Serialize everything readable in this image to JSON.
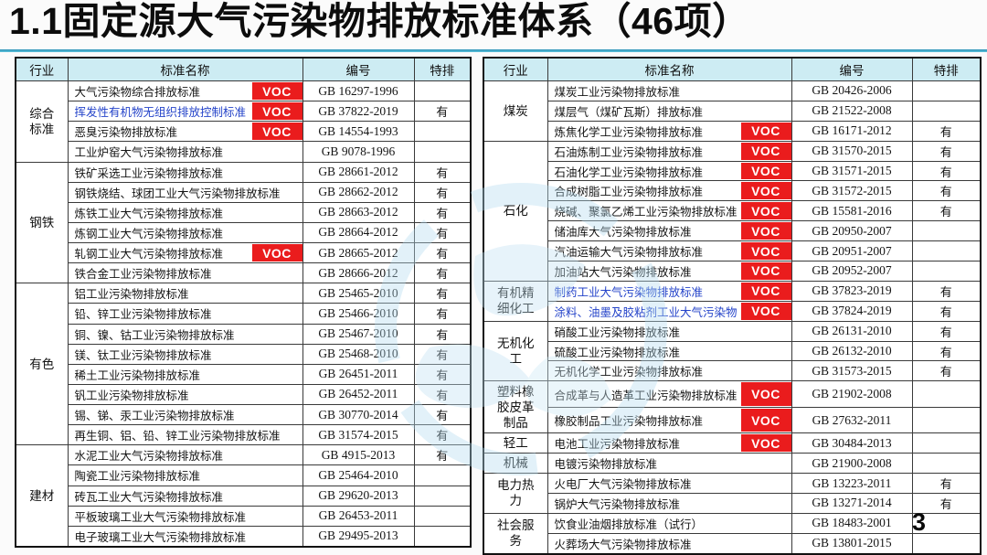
{
  "title": "1.1固定源大气污染物排放标准体系（46项）",
  "page_number": "3",
  "voc_label": "VOC",
  "colors": {
    "header_bg": "#cdecf3",
    "voc_red": "#ea1c1d",
    "link_blue": "#2443c9",
    "title_rule": "#3fa9c6"
  },
  "tables": [
    {
      "headers": [
        "行业",
        "标准名称",
        "编号",
        "特排"
      ],
      "groups": [
        {
          "industry": "综合标准",
          "rows": [
            {
              "name": "大气污染物综合排放标准",
              "voc": true,
              "blue": false,
              "code": "GB 16297-1996",
              "special": ""
            },
            {
              "name": "挥发性有机物无组织排放控制标准",
              "voc": true,
              "blue": true,
              "code": "GB 37822-2019",
              "special": "有"
            },
            {
              "name": "恶臭污染物排放标准",
              "voc": true,
              "blue": false,
              "code": "GB 14554-1993",
              "special": ""
            },
            {
              "name": "工业炉窑大气污染物排放标准",
              "voc": false,
              "blue": false,
              "code": "GB 9078-1996",
              "special": ""
            }
          ]
        },
        {
          "industry": "钢铁",
          "rows": [
            {
              "name": "铁矿采选工业污染物排放标准",
              "voc": false,
              "blue": false,
              "code": "GB 28661-2012",
              "special": "有"
            },
            {
              "name": "钢铁烧结、球团工业大气污染物排放标准",
              "voc": false,
              "blue": false,
              "code": "GB 28662-2012",
              "special": "有"
            },
            {
              "name": "炼铁工业大气污染物排放标准",
              "voc": false,
              "blue": false,
              "code": "GB 28663-2012",
              "special": "有"
            },
            {
              "name": "炼钢工业大气污染物排放标准",
              "voc": false,
              "blue": false,
              "code": "GB 28664-2012",
              "special": "有"
            },
            {
              "name": "轧钢工业大气污染物排放标准",
              "voc": true,
              "blue": false,
              "code": "GB 28665-2012",
              "special": "有"
            },
            {
              "name": "铁合金工业污染物排放标准",
              "voc": false,
              "blue": false,
              "code": "GB 28666-2012",
              "special": "有"
            }
          ]
        },
        {
          "industry": "有色",
          "rows": [
            {
              "name": "铝工业污染物排放标准",
              "voc": false,
              "blue": false,
              "code": "GB 25465-2010",
              "special": "有"
            },
            {
              "name": "铅、锌工业污染物排放标准",
              "voc": false,
              "blue": false,
              "code": "GB 25466-2010",
              "special": "有"
            },
            {
              "name": "铜、镍、钴工业污染物排放标准",
              "voc": false,
              "blue": false,
              "code": "GB 25467-2010",
              "special": "有"
            },
            {
              "name": "镁、钛工业污染物排放标准",
              "voc": false,
              "blue": false,
              "code": "GB 25468-2010",
              "special": "有"
            },
            {
              "name": "稀土工业污染物排放标准",
              "voc": false,
              "blue": false,
              "code": "GB 26451-2011",
              "special": "有"
            },
            {
              "name": "钒工业污染物排放标准",
              "voc": false,
              "blue": false,
              "code": "GB 26452-2011",
              "special": "有"
            },
            {
              "name": "锡、锑、汞工业污染物排放标准",
              "voc": false,
              "blue": false,
              "code": "GB 30770-2014",
              "special": "有"
            },
            {
              "name": "再生铜、铝、铅、锌工业污染物排放标准",
              "voc": false,
              "blue": false,
              "code": "GB 31574-2015",
              "special": "有"
            }
          ]
        },
        {
          "industry": "建材",
          "rows": [
            {
              "name": "水泥工业大气污染物排放标准",
              "voc": false,
              "blue": false,
              "code": "GB 4915-2013",
              "special": "有"
            },
            {
              "name": "陶瓷工业污染物排放标准",
              "voc": false,
              "blue": false,
              "code": "GB 25464-2010",
              "special": ""
            },
            {
              "name": "砖瓦工业大气污染物排放标准",
              "voc": false,
              "blue": false,
              "code": "GB 29620-2013",
              "special": ""
            },
            {
              "name": "平板玻璃工业大气污染物排放标准",
              "voc": false,
              "blue": false,
              "code": "GB 26453-2011",
              "special": ""
            },
            {
              "name": "电子玻璃工业大气污染物排放标准",
              "voc": false,
              "blue": false,
              "code": "GB 29495-2013",
              "special": ""
            }
          ]
        }
      ]
    },
    {
      "headers": [
        "行业",
        "标准名称",
        "编号",
        "特排"
      ],
      "groups": [
        {
          "industry": "煤炭",
          "rows": [
            {
              "name": "煤炭工业污染物排放标准",
              "voc": false,
              "blue": false,
              "code": "GB 20426-2006",
              "special": ""
            },
            {
              "name": "煤层气（煤矿瓦斯）排放标准",
              "voc": false,
              "blue": false,
              "code": "GB 21522-2008",
              "special": ""
            },
            {
              "name": "炼焦化学工业污染物排放标准",
              "voc": true,
              "blue": false,
              "code": "GB 16171-2012",
              "special": "有"
            }
          ]
        },
        {
          "industry": "石化",
          "rows": [
            {
              "name": "石油炼制工业污染物排放标准",
              "voc": true,
              "blue": false,
              "code": "GB 31570-2015",
              "special": "有"
            },
            {
              "name": "石油化学工业污染物排放标准",
              "voc": true,
              "blue": false,
              "code": "GB 31571-2015",
              "special": "有"
            },
            {
              "name": "合成树脂工业污染物排放标准",
              "voc": true,
              "blue": false,
              "code": "GB 31572-2015",
              "special": "有"
            },
            {
              "name": "烧碱、聚氯乙烯工业污染物排放标准",
              "voc": true,
              "blue": false,
              "code": "GB 15581-2016",
              "special": "有"
            },
            {
              "name": "储油库大气污染物排放标准",
              "voc": true,
              "blue": false,
              "code": "GB 20950-2007",
              "special": ""
            },
            {
              "name": "汽油运输大气污染物排放标准",
              "voc": true,
              "blue": false,
              "code": "GB 20951-2007",
              "special": ""
            },
            {
              "name": "加油站大气污染物排放标准",
              "voc": true,
              "blue": false,
              "code": "GB 20952-2007",
              "special": ""
            }
          ]
        },
        {
          "industry": "有机精细化工",
          "rows": [
            {
              "name": "制药工业大气污染物排放标准",
              "voc": true,
              "blue": true,
              "code": "GB 37823-2019",
              "special": "有"
            },
            {
              "name": "涂料、油墨及胶粘剂工业大气污染物排放",
              "voc": true,
              "blue": true,
              "code": "GB 37824-2019",
              "special": "有"
            }
          ]
        },
        {
          "industry": "无机化工",
          "rows": [
            {
              "name": "硝酸工业污染物排放标准",
              "voc": false,
              "blue": false,
              "code": "GB 26131-2010",
              "special": "有"
            },
            {
              "name": "硫酸工业污染物排放标准",
              "voc": false,
              "blue": false,
              "code": "GB 26132-2010",
              "special": "有"
            },
            {
              "name": "无机化学工业污染物排放标准",
              "voc": false,
              "blue": false,
              "code": "GB 31573-2015",
              "special": "有"
            }
          ]
        },
        {
          "industry": "塑料橡胶皮革制品",
          "rows": [
            {
              "name": "合成革与人造革工业污染物排放标准",
              "voc": true,
              "blue": false,
              "code": "GB 21902-2008",
              "special": ""
            },
            {
              "name": "橡胶制品工业污染物排放标准",
              "voc": true,
              "blue": false,
              "code": "GB 27632-2011",
              "special": ""
            }
          ]
        },
        {
          "industry": "轻工",
          "rows": [
            {
              "name": "电池工业污染物排放标准",
              "voc": true,
              "blue": false,
              "code": "GB 30484-2013",
              "special": ""
            }
          ]
        },
        {
          "industry": "机械",
          "rows": [
            {
              "name": "电镀污染物排放标准",
              "voc": false,
              "blue": false,
              "code": "GB 21900-2008",
              "special": ""
            }
          ]
        },
        {
          "industry": "电力热力",
          "rows": [
            {
              "name": "火电厂大气污染物排放标准",
              "voc": false,
              "blue": false,
              "code": "GB 13223-2011",
              "special": "有"
            },
            {
              "name": "锅炉大气污染物排放标准",
              "voc": false,
              "blue": false,
              "code": "GB 13271-2014",
              "special": "有"
            }
          ]
        },
        {
          "industry": "社会服务",
          "rows": [
            {
              "name": "饮食业油烟排放标准（试行）",
              "voc": false,
              "blue": false,
              "code": "GB 18483-2001",
              "special": ""
            },
            {
              "name": "火葬场大气污染物排放标准",
              "voc": false,
              "blue": false,
              "code": "GB 13801-2015",
              "special": ""
            }
          ]
        }
      ]
    }
  ]
}
